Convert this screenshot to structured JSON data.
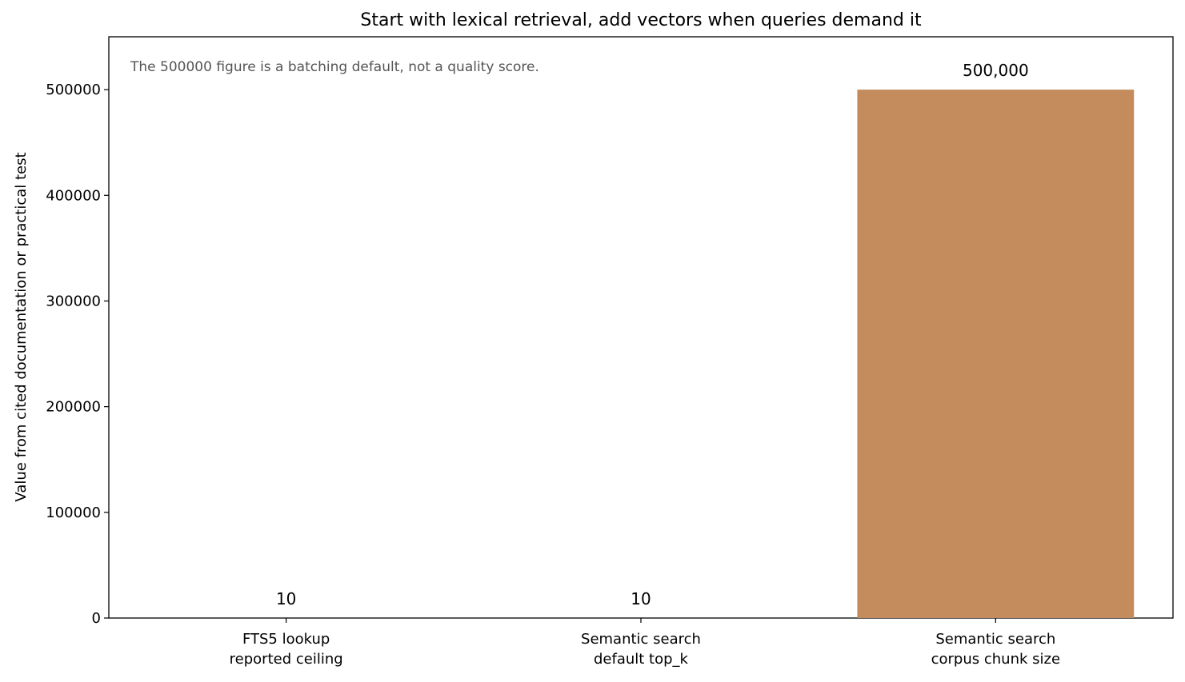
{
  "chart_data": {
    "type": "bar",
    "title": "Start with lexical retrieval, add vectors when queries demand it",
    "annotation": "The 500000 figure is a batching default, not a quality score.",
    "xlabel": "",
    "ylabel": "Value from cited documentation or practical test",
    "ylim": [
      0,
      550000
    ],
    "yticks": [
      0,
      100000,
      200000,
      300000,
      400000,
      500000
    ],
    "ytick_labels": [
      "0",
      "100000",
      "200000",
      "300000",
      "400000",
      "500000"
    ],
    "grid": false,
    "categories": [
      [
        "FTS5 lookup",
        "reported ceiling"
      ],
      [
        "Semantic search",
        "default top_k"
      ],
      [
        "Semantic search",
        "corpus chunk size"
      ]
    ],
    "values": [
      10,
      10,
      500000
    ],
    "data_labels": [
      "10",
      "10",
      "500,000"
    ],
    "colors": [
      "#2f6f8f",
      "#7a9a3a",
      "#c48c5c"
    ]
  }
}
